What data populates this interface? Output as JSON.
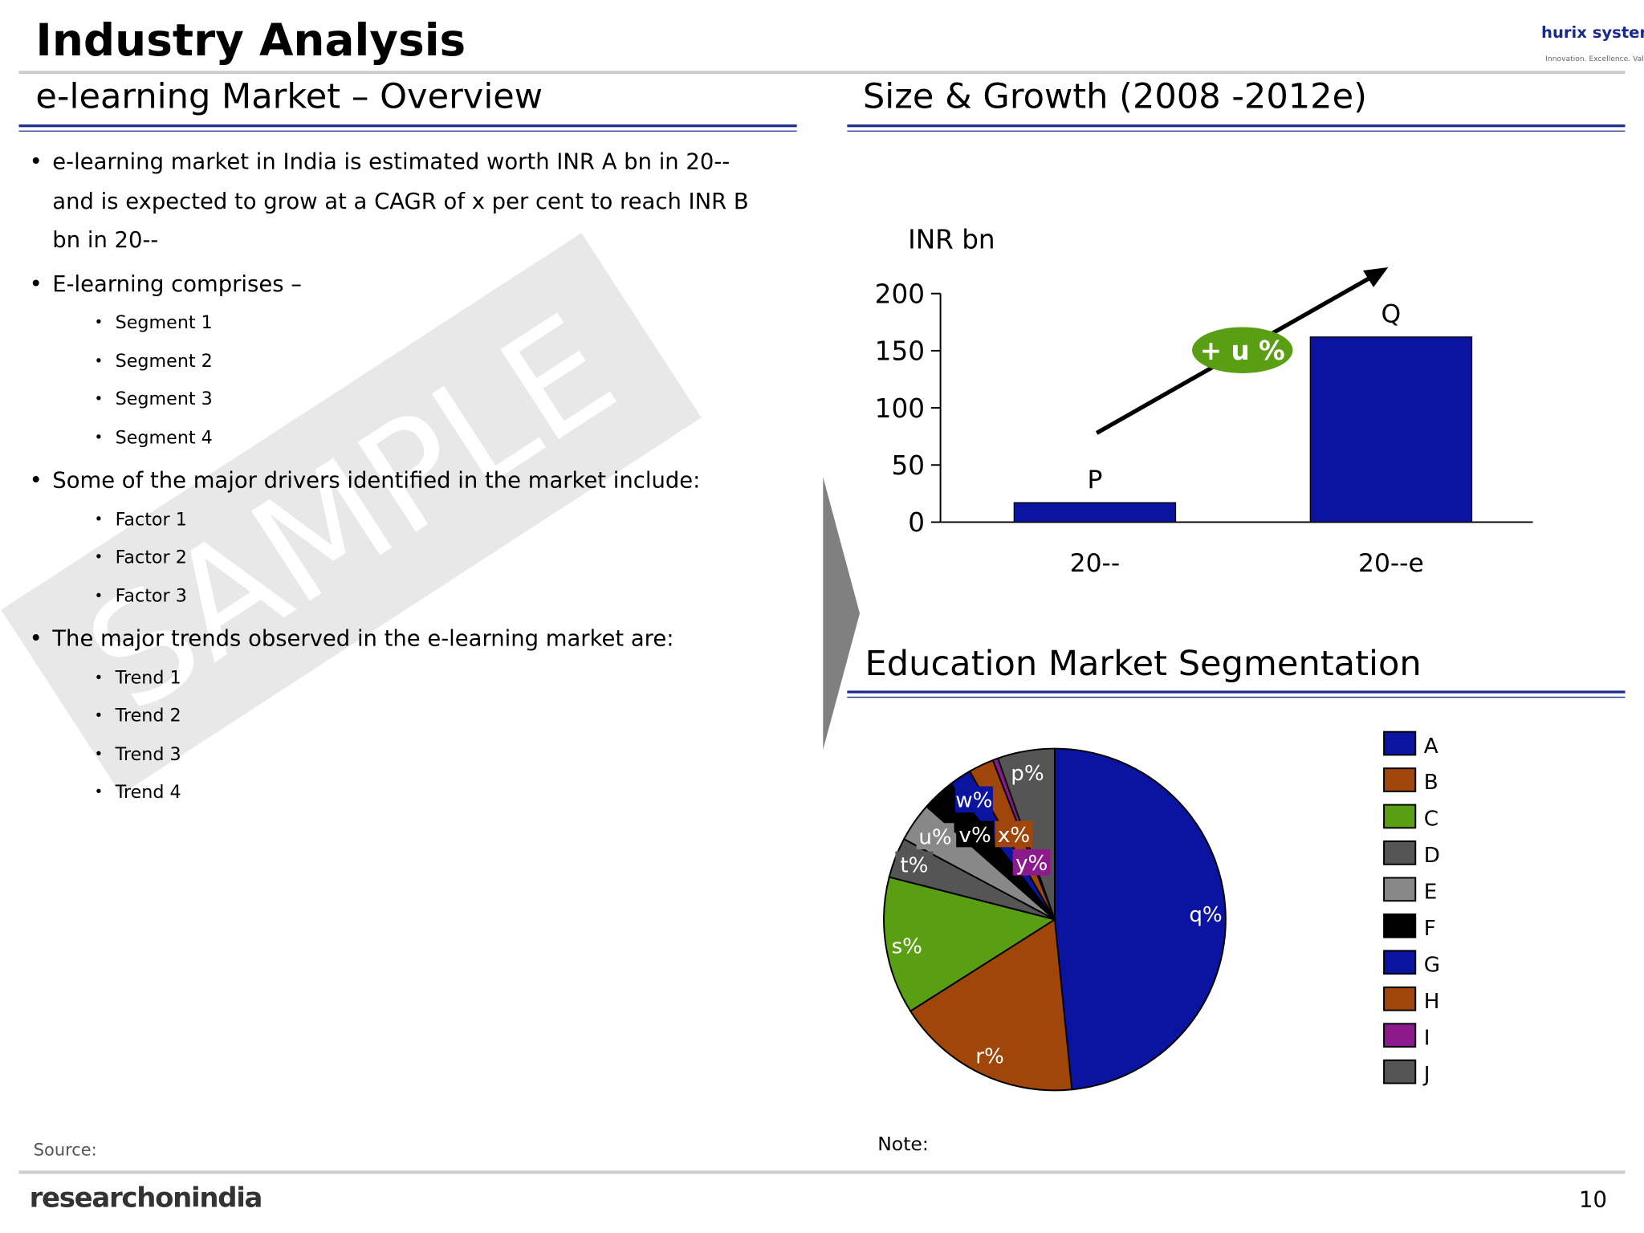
{
  "header": {
    "title": "Industry Analysis",
    "logo": "hurix systems",
    "tagline": "Innovation. Excellence. Values"
  },
  "overview": {
    "heading": "e-learning Market – Overview",
    "bullets": [
      {
        "text": "e-learning market in India  is estimated worth INR A bn in 20-- and is expected to grow at  a CAGR of x per cent to reach INR B bn in 20--"
      },
      {
        "text": "E-learning comprises –",
        "items": [
          "Segment 1",
          "Segment 2",
          "Segment 3",
          "Segment 4"
        ]
      },
      {
        "text": "Some of the major drivers identified in the market include:",
        "items": [
          "Factor 1",
          "Factor 2",
          "Factor 3"
        ]
      },
      {
        "text": "The major trends observed in the e-learning market are:",
        "items": [
          "Trend 1",
          "Trend 2",
          "Trend 3",
          "Trend 4"
        ]
      }
    ]
  },
  "watermark": "SAMPLE",
  "size_growth": {
    "heading": "Size & Growth (2008 -2012e)"
  },
  "segmentation": {
    "heading": "Education Market Segmentation"
  },
  "chart_data": [
    {
      "type": "bar",
      "y_label": "INR bn",
      "categories": [
        "20--",
        "20--e"
      ],
      "values": [
        17,
        162
      ],
      "value_labels": [
        "P",
        "Q"
      ],
      "color": "#0a14a0",
      "ylim": [
        0,
        200
      ],
      "yticks": [
        0,
        50,
        100,
        150,
        200
      ],
      "annotation": "+ u %"
    },
    {
      "type": "pie",
      "categories": [
        "A",
        "B",
        "C",
        "D",
        "E",
        "F",
        "G",
        "H",
        "I",
        "J"
      ],
      "values": [
        48.4,
        17.6,
        13,
        3.8,
        3.7,
        3.1,
        2.1,
        2.4,
        0.5,
        5.4
      ],
      "value_labels": [
        "q%",
        "r%",
        "s%",
        "t%",
        "u%",
        "v%",
        "w%",
        "x%",
        "y%",
        "p%"
      ],
      "colors": [
        "#0a14a0",
        "#a0460a",
        "#5a9e14",
        "#555555",
        "#888888",
        "#000000",
        "#0a14a0",
        "#a0460a",
        "#8c1a8c",
        "#555555"
      ]
    }
  ],
  "footer": {
    "source": "Source:",
    "note": "Note:",
    "brand": "researchonindia",
    "page": "10"
  }
}
